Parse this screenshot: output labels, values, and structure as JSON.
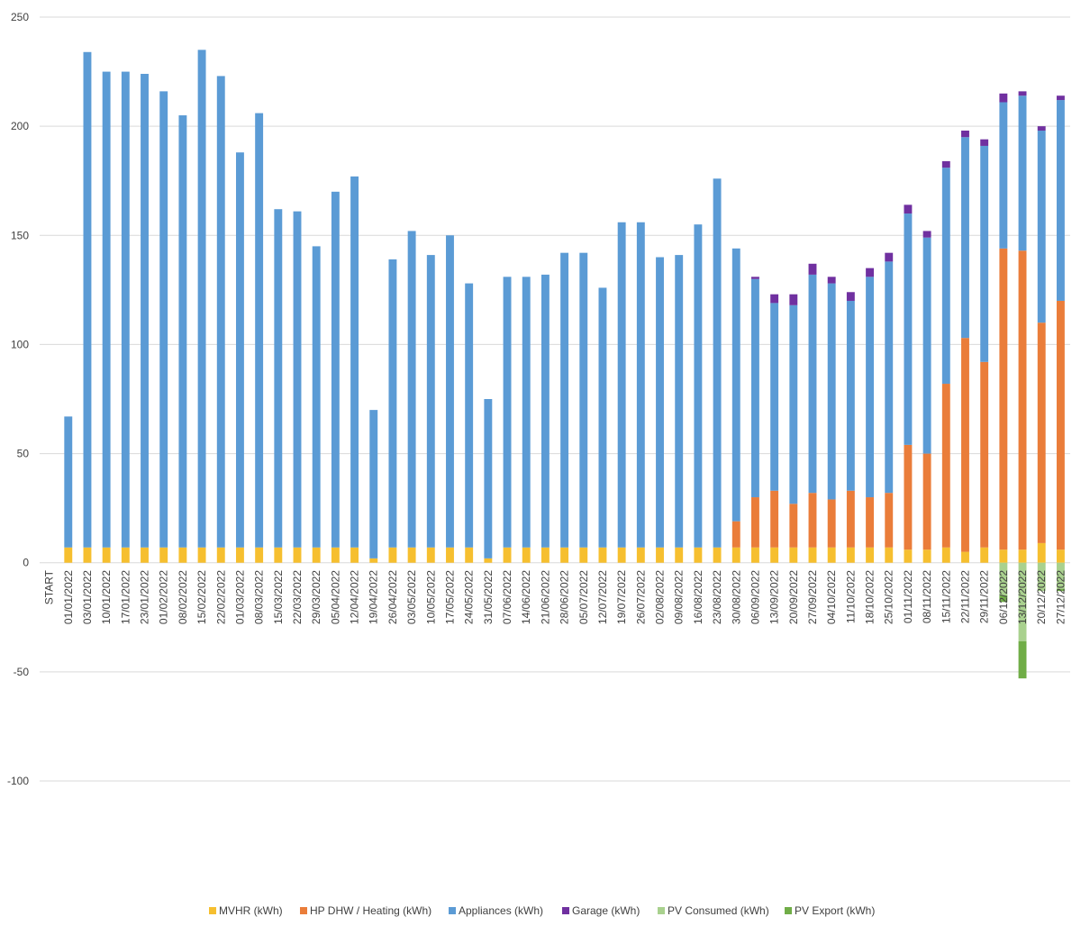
{
  "chart_data": {
    "type": "bar",
    "stacked": true,
    "grid": true,
    "legend_position": "bottom",
    "ylim": [
      -100,
      250
    ],
    "yticks": [
      -100,
      -50,
      0,
      50,
      100,
      150,
      200,
      250
    ],
    "categories": [
      "START",
      "01/01/2022",
      "03/01/2022",
      "10/01/2022",
      "17/01/2022",
      "23/01/2022",
      "01/02/2022",
      "08/02/2022",
      "15/02/2022",
      "22/02/2022",
      "01/03/2022",
      "08/03/2022",
      "15/03/2022",
      "22/03/2022",
      "29/03/2022",
      "05/04/2022",
      "12/04/2022",
      "19/04/2022",
      "26/04/2022",
      "03/05/2022",
      "10/05/2022",
      "17/05/2022",
      "24/05/2022",
      "31/05/2022",
      "07/06/2022",
      "14/06/2022",
      "21/06/2022",
      "28/06/2022",
      "05/07/2022",
      "12/07/2022",
      "19/07/2022",
      "26/07/2022",
      "02/08/2022",
      "09/08/2022",
      "16/08/2022",
      "23/08/2022",
      "30/08/2022",
      "06/09/2022",
      "13/09/2022",
      "20/09/2022",
      "27/09/2022",
      "04/10/2022",
      "11/10/2022",
      "18/10/2022",
      "25/10/2022",
      "01/11/2022",
      "08/11/2022",
      "15/11/2022",
      "22/11/2022",
      "29/11/2022",
      "06/12/2022",
      "13/12/2022",
      "20/12/2022",
      "27/12/2022"
    ],
    "series": [
      {
        "name": "MVHR (kWh)",
        "color": "#f6bf2f",
        "values": [
          0,
          7,
          7,
          7,
          7,
          7,
          7,
          7,
          7,
          7,
          7,
          7,
          7,
          7,
          7,
          7,
          7,
          2,
          7,
          7,
          7,
          7,
          7,
          2,
          7,
          7,
          7,
          7,
          7,
          7,
          7,
          7,
          7,
          7,
          7,
          7,
          7,
          7,
          7,
          7,
          7,
          7,
          7,
          7,
          7,
          6,
          6,
          7,
          5,
          7,
          6,
          6,
          9,
          6
        ]
      },
      {
        "name": "HP DHW / Heating (kWh)",
        "color": "#ea7d3a",
        "values": [
          0,
          0,
          0,
          0,
          0,
          0,
          0,
          0,
          0,
          0,
          0,
          0,
          0,
          0,
          0,
          0,
          0,
          0,
          0,
          0,
          0,
          0,
          0,
          0,
          0,
          0,
          0,
          0,
          0,
          0,
          0,
          0,
          0,
          0,
          0,
          0,
          12,
          23,
          26,
          20,
          25,
          22,
          26,
          23,
          25,
          48,
          44,
          75,
          98,
          85,
          138,
          137,
          101,
          114
        ]
      },
      {
        "name": "Appliances (kWh)",
        "color": "#5b9bd5",
        "values": [
          0,
          60,
          227,
          218,
          218,
          217,
          209,
          198,
          228,
          216,
          181,
          199,
          155,
          154,
          138,
          163,
          170,
          68,
          132,
          145,
          134,
          143,
          121,
          73,
          124,
          124,
          125,
          135,
          135,
          119,
          149,
          149,
          133,
          134,
          148,
          169,
          125,
          100,
          86,
          91,
          100,
          99,
          87,
          101,
          106,
          106,
          99,
          99,
          92,
          99,
          67,
          71,
          88,
          92
        ]
      },
      {
        "name": "Garage (kWh)",
        "color": "#7030a0",
        "values": [
          0,
          0,
          0,
          0,
          0,
          0,
          0,
          0,
          0,
          0,
          0,
          0,
          0,
          0,
          0,
          0,
          0,
          0,
          0,
          0,
          0,
          0,
          0,
          0,
          0,
          0,
          0,
          0,
          0,
          0,
          0,
          0,
          0,
          0,
          0,
          0,
          0,
          1,
          4,
          5,
          5,
          3,
          4,
          4,
          4,
          4,
          3,
          3,
          3,
          3,
          4,
          2,
          2,
          2
        ]
      },
      {
        "name": "PV Consumed (kWh)",
        "color": "#a9d18e",
        "values": [
          0,
          0,
          0,
          0,
          0,
          0,
          0,
          0,
          0,
          0,
          0,
          0,
          0,
          0,
          0,
          0,
          0,
          0,
          0,
          0,
          0,
          0,
          0,
          0,
          0,
          0,
          0,
          0,
          0,
          0,
          0,
          0,
          0,
          0,
          0,
          0,
          0,
          0,
          0,
          0,
          0,
          0,
          0,
          0,
          0,
          0,
          0,
          0,
          0,
          0,
          -15,
          -36,
          -13,
          -12
        ]
      },
      {
        "name": "PV Export (kWh)",
        "color": "#70ad47",
        "values": [
          0,
          0,
          0,
          0,
          0,
          0,
          0,
          0,
          0,
          0,
          0,
          0,
          0,
          0,
          0,
          0,
          0,
          0,
          0,
          0,
          0,
          0,
          0,
          0,
          0,
          0,
          0,
          0,
          0,
          0,
          0,
          0,
          0,
          0,
          0,
          0,
          0,
          0,
          0,
          0,
          0,
          0,
          0,
          0,
          0,
          0,
          0,
          0,
          0,
          0,
          -3,
          -17,
          0,
          -1
        ]
      }
    ]
  }
}
